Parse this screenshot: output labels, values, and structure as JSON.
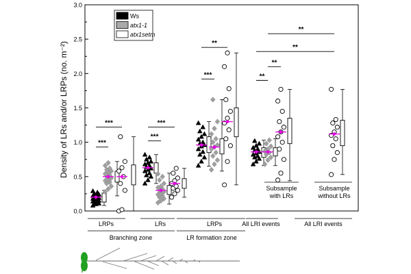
{
  "chart_data": {
    "type": "scatter",
    "ylabel": "Density of LRs and/or LRPs (no. m⁻²)",
    "ylim": [
      0,
      3.0
    ],
    "yticks": [
      "0.0",
      "0.5",
      "1.0",
      "1.5",
      "2.0",
      "2.5",
      "3.0"
    ],
    "legend": {
      "placement": "top-left",
      "entries": [
        {
          "name": "Ws",
          "fill": "#000000",
          "italic": false
        },
        {
          "name": "atx1-1",
          "fill": "#a9a9a9",
          "italic": true
        },
        {
          "name": "atx1setm",
          "fill": "#ffffff",
          "italic": true
        }
      ]
    },
    "marker_colors": {
      "ws": "#000000",
      "atx": "#a0a0a0",
      "setm": "#ffffff",
      "mean": "#e600e6"
    },
    "groups": [
      {
        "id": "branching-lrps",
        "xlabel": "LRPs",
        "ws": {
          "mean": 0.2,
          "box": [
            0.13,
            0.26
          ],
          "whisker": [
            0.08,
            0.3
          ],
          "values": [
            0.08,
            0.1,
            0.11,
            0.12,
            0.13,
            0.14,
            0.15,
            0.15,
            0.16,
            0.17,
            0.18,
            0.18,
            0.19,
            0.2,
            0.21,
            0.22,
            0.23,
            0.24,
            0.25,
            0.27,
            0.29
          ]
        },
        "atx": {
          "mean": 0.5,
          "box": [
            0.42,
            0.58
          ],
          "whisker": [
            0.22,
            0.72
          ],
          "values": [
            0.28,
            0.32,
            0.36,
            0.4,
            0.42,
            0.44,
            0.46,
            0.48,
            0.5,
            0.52,
            0.54,
            0.56,
            0.58,
            0.6,
            0.62,
            0.66,
            0.7
          ]
        },
        "setm": {
          "mean": 0.5,
          "box": [
            0.38,
            0.67
          ],
          "whisker": [
            0.0,
            1.08
          ],
          "values": [
            0.0,
            0.02,
            0.3,
            0.4,
            0.5,
            0.58,
            0.63,
            0.72,
            1.08
          ]
        }
      },
      {
        "id": "branching-lrs",
        "xlabel": "LRs",
        "ws": {
          "mean": 0.63,
          "box": [
            0.55,
            0.7
          ],
          "whisker": [
            0.4,
            0.82
          ],
          "values": [
            0.4,
            0.45,
            0.5,
            0.52,
            0.55,
            0.58,
            0.6,
            0.62,
            0.64,
            0.66,
            0.68,
            0.7,
            0.72,
            0.75,
            0.78,
            0.82
          ]
        },
        "atx": {
          "mean": 0.3,
          "box": [
            0.24,
            0.37
          ],
          "whisker": [
            0.1,
            0.55
          ],
          "values": [
            0.12,
            0.15,
            0.18,
            0.2,
            0.22,
            0.24,
            0.26,
            0.28,
            0.3,
            0.32,
            0.34,
            0.36,
            0.4,
            0.45,
            0.5,
            0.54
          ]
        },
        "setm": {
          "mean": 0.4,
          "box": [
            0.33,
            0.47
          ],
          "whisker": [
            0.2,
            0.62
          ],
          "values": [
            0.2,
            0.25,
            0.3,
            0.33,
            0.36,
            0.4,
            0.44,
            0.48,
            0.55,
            0.62
          ]
        }
      },
      {
        "id": "formation-lrps",
        "xlabel": "LRPs",
        "ws": {
          "mean": 0.96,
          "box": [
            0.85,
            1.08
          ],
          "whisker": [
            0.65,
            1.3
          ],
          "values": [
            0.66,
            0.72,
            0.78,
            0.82,
            0.86,
            0.9,
            0.94,
            0.96,
            0.98,
            1.0,
            1.04,
            1.08,
            1.12,
            1.16,
            1.22,
            1.28
          ]
        },
        "atx": {
          "mean": 0.93,
          "box": [
            0.83,
            1.05
          ],
          "whisker": [
            0.58,
            1.62
          ],
          "values": [
            0.6,
            0.68,
            0.74,
            0.8,
            0.85,
            0.9,
            0.93,
            0.96,
            1.0,
            1.05,
            1.12,
            1.2,
            1.3,
            1.62
          ]
        },
        "setm": {
          "mean": 1.3,
          "box": [
            1.08,
            1.5
          ],
          "whisker": [
            0.38,
            2.3
          ],
          "values": [
            0.38,
            0.72,
            0.95,
            1.05,
            1.18,
            1.28,
            1.35,
            1.45,
            1.62,
            1.78,
            2.1,
            2.3
          ]
        }
      },
      {
        "id": "all-lri-events",
        "xlabel": "All LRI events",
        "ws": {
          "mean": 0.86,
          "box": [
            0.78,
            0.92
          ],
          "whisker": [
            0.66,
            1.03
          ],
          "values": [
            0.68,
            0.72,
            0.76,
            0.78,
            0.8,
            0.82,
            0.84,
            0.86,
            0.88,
            0.9,
            0.92,
            0.95,
            0.98,
            1.02
          ]
        },
        "atx": {
          "mean": 0.86,
          "box": [
            0.8,
            0.92
          ],
          "whisker": [
            0.66,
            1.05
          ],
          "values": [
            0.68,
            0.74,
            0.78,
            0.82,
            0.85,
            0.87,
            0.9,
            0.94,
            0.98,
            1.03
          ]
        },
        "setm": {
          "mean": 1.15,
          "box": [
            0.98,
            1.35
          ],
          "whisker": [
            0.44,
            1.77
          ],
          "values": [
            0.45,
            0.55,
            0.75,
            0.9,
            1.0,
            1.08,
            1.15,
            1.22,
            1.3,
            1.45,
            1.6,
            1.77
          ]
        }
      },
      {
        "id": "all-lri-events-2",
        "xlabel": "All LRI events",
        "setm": {
          "mean": 1.12,
          "box": [
            0.95,
            1.32
          ],
          "whisker": [
            0.53,
            1.77
          ],
          "values": [
            0.53,
            0.75,
            0.85,
            0.95,
            1.05,
            1.1,
            1.15,
            1.22,
            1.28,
            1.33,
            1.77
          ]
        }
      }
    ],
    "annotations": [
      {
        "text": "Subsample with LRs"
      },
      {
        "text": "Subsample without LRs"
      }
    ],
    "significance": [
      {
        "label": "***",
        "group": "branching-lrps",
        "from": "ws",
        "to": "atx",
        "y": 0.93
      },
      {
        "label": "***",
        "group": "branching-lrps",
        "from": "ws",
        "to": "setm",
        "y": 1.22
      },
      {
        "label": "***",
        "group": "branching-lrs",
        "from": "ws",
        "to": "atx",
        "y": 1.02
      },
      {
        "label": "***",
        "group": "branching-lrs",
        "from": "ws",
        "to": "setm",
        "y": 1.22
      },
      {
        "label": "***",
        "group": "formation-lrps",
        "from": "ws",
        "to": "atx",
        "y": 1.92
      },
      {
        "label": "**",
        "group": "formation-lrps",
        "from": "ws",
        "to": "setm",
        "y": 2.38
      },
      {
        "label": "**",
        "group": "all-lri-events",
        "from": "ws",
        "to": "atx",
        "y": 1.9
      },
      {
        "label": "**",
        "group": "all-lri-events",
        "from": "atx",
        "to": "setm",
        "y": 2.1
      },
      {
        "label": "**",
        "group": "all-lri-events",
        "from": "ws",
        "to": "other:setm",
        "y": 2.32
      },
      {
        "label": "**",
        "group": "all-lri-events",
        "from": "atx",
        "to": "other:setm",
        "y": 2.58
      }
    ],
    "zones": [
      {
        "label": "Branching zone",
        "groups": [
          "branching-lrps",
          "branching-lrs"
        ]
      },
      {
        "label": "LR formation zone",
        "groups": [
          "formation-lrps"
        ]
      }
    ]
  }
}
